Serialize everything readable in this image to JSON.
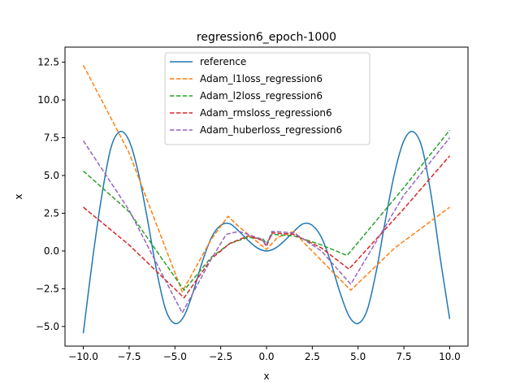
{
  "chart_data": {
    "type": "line",
    "title": "regression6_epoch-1000",
    "xlabel": "x",
    "ylabel": "x",
    "xlim": [
      -11.0,
      11.0
    ],
    "ylim": [
      -6.3,
      13.5
    ],
    "xticks": [
      -10.0,
      -7.5,
      -5.0,
      -2.5,
      0.0,
      2.5,
      5.0,
      7.5,
      10.0
    ],
    "xtick_labels": [
      "−10.0",
      "−7.5",
      "−5.0",
      "−2.5",
      "0.0",
      "2.5",
      "5.0",
      "7.5",
      "10.0"
    ],
    "yticks": [
      -5.0,
      -2.5,
      0.0,
      2.5,
      5.0,
      7.5,
      10.0,
      12.5
    ],
    "ytick_labels": [
      "−5.0",
      "−2.5",
      "0.0",
      "2.5",
      "5.0",
      "7.5",
      "10.0",
      "12.5"
    ],
    "grid": false,
    "legend_position": "upper-center",
    "series": [
      {
        "name": "reference",
        "color": "#1f77b4",
        "dash": "solid",
        "points": [
          [
            -10.0,
            -5.45
          ],
          [
            -9.5,
            -0.6
          ],
          [
            -9.0,
            3.6
          ],
          [
            -8.5,
            6.8
          ],
          [
            -8.0,
            7.9
          ],
          [
            -7.5,
            7.3
          ],
          [
            -7.0,
            5.2
          ],
          [
            -6.5,
            2.1
          ],
          [
            -6.0,
            -1.3
          ],
          [
            -5.5,
            -3.9
          ],
          [
            -5.0,
            -4.8
          ],
          [
            -4.5,
            -4.3
          ],
          [
            -4.0,
            -2.7
          ],
          [
            -3.5,
            -0.7
          ],
          [
            -3.0,
            0.9
          ],
          [
            -2.5,
            1.7
          ],
          [
            -2.0,
            1.8
          ],
          [
            -1.5,
            1.3
          ],
          [
            -1.0,
            0.7
          ],
          [
            -0.5,
            0.2
          ],
          [
            0.0,
            0.0
          ],
          [
            0.5,
            0.2
          ],
          [
            1.0,
            0.7
          ],
          [
            1.5,
            1.3
          ],
          [
            2.0,
            1.8
          ],
          [
            2.5,
            1.7
          ],
          [
            3.0,
            0.9
          ],
          [
            3.5,
            -0.7
          ],
          [
            4.0,
            -2.7
          ],
          [
            4.5,
            -4.3
          ],
          [
            5.0,
            -4.8
          ],
          [
            5.5,
            -3.9
          ],
          [
            6.0,
            -1.3
          ],
          [
            6.5,
            2.1
          ],
          [
            7.0,
            5.2
          ],
          [
            7.5,
            7.3
          ],
          [
            8.0,
            7.9
          ],
          [
            8.5,
            6.8
          ],
          [
            9.0,
            3.6
          ],
          [
            9.5,
            -0.6
          ],
          [
            10.0,
            -4.5
          ]
        ]
      },
      {
        "name": "Adam_l1loss_regression6",
        "color": "#ff7f0e",
        "dash": "dashed",
        "points": [
          [
            -10.0,
            12.3
          ],
          [
            -7.5,
            6.5
          ],
          [
            -4.6,
            -2.7
          ],
          [
            -3.0,
            0.8
          ],
          [
            -2.1,
            2.3
          ],
          [
            -1.5,
            1.6
          ],
          [
            -0.5,
            0.6
          ],
          [
            0.0,
            0.1
          ],
          [
            0.6,
            0.9
          ],
          [
            1.5,
            1.3
          ],
          [
            2.0,
            0.6
          ],
          [
            4.6,
            -2.6
          ],
          [
            7.0,
            0.2
          ],
          [
            10.0,
            2.9
          ]
        ]
      },
      {
        "name": "Adam_l2loss_regression6",
        "color": "#2ca02c",
        "dash": "dashed",
        "points": [
          [
            -10.0,
            5.3
          ],
          [
            -7.5,
            2.6
          ],
          [
            -4.5,
            -2.6
          ],
          [
            -3.0,
            -0.4
          ],
          [
            -2.0,
            0.5
          ],
          [
            -1.0,
            0.9
          ],
          [
            -0.2,
            0.8
          ],
          [
            0.0,
            0.5
          ],
          [
            0.3,
            1.1
          ],
          [
            1.5,
            1.0
          ],
          [
            3.0,
            0.4
          ],
          [
            4.4,
            -0.3
          ],
          [
            7.5,
            4.2
          ],
          [
            10.0,
            8.0
          ]
        ]
      },
      {
        "name": "Adam_rmsloss_regression6",
        "color": "#d62728",
        "dash": "dashed",
        "points": [
          [
            -10.0,
            2.9
          ],
          [
            -7.5,
            0.4
          ],
          [
            -4.5,
            -3.1
          ],
          [
            -3.0,
            -0.5
          ],
          [
            -2.0,
            0.5
          ],
          [
            -1.0,
            1.0
          ],
          [
            -0.2,
            0.7
          ],
          [
            0.0,
            0.3
          ],
          [
            0.3,
            1.2
          ],
          [
            1.5,
            1.1
          ],
          [
            3.0,
            0.2
          ],
          [
            4.5,
            -1.2
          ],
          [
            7.5,
            2.8
          ],
          [
            10.0,
            6.3
          ]
        ]
      },
      {
        "name": "Adam_huberloss_regression6",
        "color": "#9467bd",
        "dash": "dashed",
        "points": [
          [
            -10.0,
            7.3
          ],
          [
            -7.5,
            2.7
          ],
          [
            -4.6,
            -4.1
          ],
          [
            -3.0,
            -0.5
          ],
          [
            -2.2,
            1.1
          ],
          [
            -1.5,
            1.3
          ],
          [
            -0.3,
            0.8
          ],
          [
            0.0,
            0.4
          ],
          [
            0.3,
            1.3
          ],
          [
            1.5,
            1.2
          ],
          [
            3.0,
            0.0
          ],
          [
            4.6,
            -2.2
          ],
          [
            7.5,
            3.7
          ],
          [
            10.0,
            7.5
          ]
        ]
      }
    ]
  }
}
